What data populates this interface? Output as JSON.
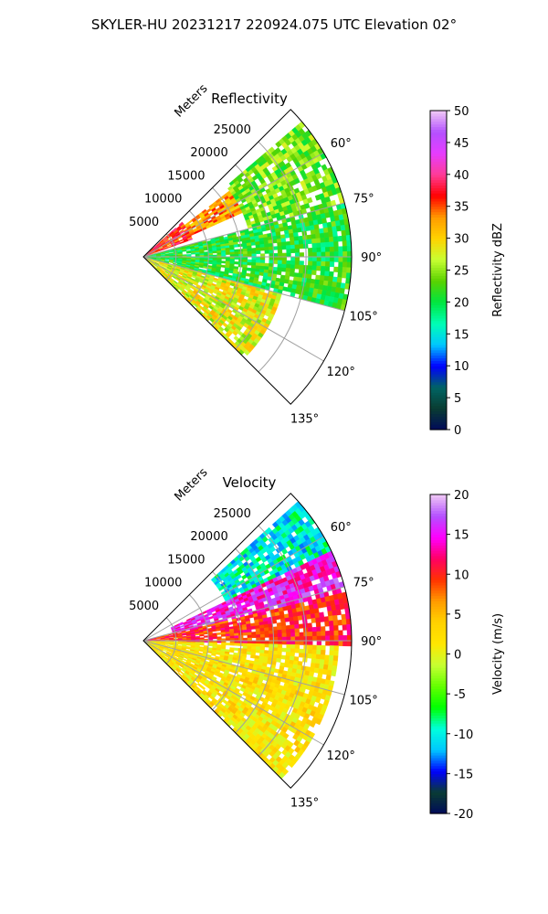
{
  "suptitle": "SKYLER-HU  20231217  220924.075 UTC Elevation 02°",
  "range_unit_label": "Meters",
  "chart_data": [
    {
      "type": "heatmap",
      "projection": "polar-sector",
      "title": "Reflectivity",
      "theta_range_deg": [
        45,
        135
      ],
      "theta_ticks": [
        "60°",
        "75°",
        "90°",
        "105°",
        "120°",
        "135°"
      ],
      "theta_tick_values": [
        60,
        75,
        90,
        105,
        120,
        135
      ],
      "r_max": 32000,
      "r_ticks": [
        "5000",
        "10000",
        "15000",
        "20000",
        "25000"
      ],
      "r_tick_values": [
        5000,
        10000,
        15000,
        20000,
        25000
      ],
      "colorbar": {
        "label": "Reflectivity dBZ",
        "range": [
          0,
          50
        ],
        "ticks": [
          "0",
          "5",
          "10",
          "15",
          "20",
          "25",
          "30",
          "35",
          "40",
          "45",
          "50"
        ],
        "tick_values": [
          0,
          5,
          10,
          15,
          20,
          25,
          30,
          35,
          40,
          45,
          50
        ]
      },
      "field_regions": [
        {
          "theta": [
            48,
            70
          ],
          "r": [
            0,
            8000
          ],
          "value": 37
        },
        {
          "theta": [
            52,
            66
          ],
          "r": [
            8000,
            17000
          ],
          "value": 33
        },
        {
          "theta": [
            50,
            75
          ],
          "r": [
            17000,
            32000
          ],
          "value": 24
        },
        {
          "theta": [
            75,
            105
          ],
          "r": [
            0,
            32000
          ],
          "value": 21
        },
        {
          "theta": [
            105,
            135
          ],
          "r": [
            0,
            22000
          ],
          "value": 28
        }
      ]
    },
    {
      "type": "heatmap",
      "projection": "polar-sector",
      "title": "Velocity",
      "theta_range_deg": [
        45,
        135
      ],
      "theta_ticks": [
        "60°",
        "75°",
        "90°",
        "105°",
        "120°",
        "135°"
      ],
      "theta_tick_values": [
        60,
        75,
        90,
        105,
        120,
        135
      ],
      "r_max": 32000,
      "r_ticks": [
        "5000",
        "10000",
        "15000",
        "20000",
        "25000"
      ],
      "r_tick_values": [
        5000,
        10000,
        15000,
        20000,
        25000
      ],
      "colorbar": {
        "label": "Velocity (m/s)",
        "range": [
          -20,
          20
        ],
        "ticks": [
          "-20",
          "-15",
          "-10",
          "-5",
          "0",
          "5",
          "10",
          "15",
          "20"
        ],
        "tick_values": [
          -20,
          -15,
          -10,
          -5,
          0,
          5,
          10,
          15,
          20
        ]
      },
      "field_regions": [
        {
          "theta": [
            48,
            66
          ],
          "r": [
            14000,
            32000
          ],
          "value": -10
        },
        {
          "theta": [
            64,
            76
          ],
          "r": [
            5000,
            32000
          ],
          "value": 15
        },
        {
          "theta": [
            76,
            92
          ],
          "r": [
            0,
            32000
          ],
          "value": 10
        },
        {
          "theta": [
            92,
            135
          ],
          "r": [
            0,
            30000
          ],
          "value": 2
        }
      ]
    }
  ],
  "colors": {
    "reflectivity_stops": [
      "#000a5a",
      "#0a3c32",
      "#006464",
      "#0000ff",
      "#00c8ff",
      "#00ffb4",
      "#00e640",
      "#5ad200",
      "#c8ff32",
      "#ffd200",
      "#ff9a00",
      "#ff0000",
      "#ff3c96",
      "#e63cff",
      "#b450ff",
      "#f0c8f5"
    ],
    "velocity_stops": [
      "#000a5a",
      "#0a3c32",
      "#0000ff",
      "#00c8ff",
      "#00ffdc",
      "#00ff00",
      "#64ff00",
      "#c8ff32",
      "#ffe600",
      "#ffd200",
      "#ff9a00",
      "#ff3200",
      "#ff0064",
      "#ff00ff",
      "#b450ff",
      "#f0c8f5"
    ],
    "grid": "#a0a0a0"
  }
}
